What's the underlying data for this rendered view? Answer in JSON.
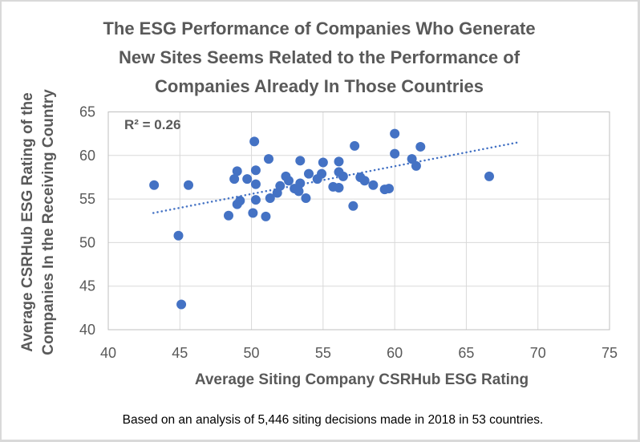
{
  "chart_data": {
    "type": "scatter",
    "title": [
      "The ESG Performance of Companies Who Generate",
      "New Sites Seems Related to the Performance of",
      "Companies Already In Those Countries"
    ],
    "xlabel": "Average Siting Company CSRHub ESG Rating",
    "ylabel": [
      "Average CSRHub  ESG Rating of the",
      "Companies In the Receiving Country"
    ],
    "xlim": [
      40,
      75
    ],
    "ylim": [
      40,
      65
    ],
    "xticks": [
      40,
      45,
      50,
      55,
      60,
      65,
      70,
      75
    ],
    "yticks": [
      40,
      45,
      50,
      55,
      60,
      65
    ],
    "grid": true,
    "marker_color": "#4472c4",
    "annotation": "R² = 0.26",
    "trendline": {
      "type": "linear",
      "style": "dotted",
      "x_start": 43.15,
      "y_start": 53.4,
      "x_end": 68.6,
      "y_end": 61.5,
      "r_squared": 0.26
    },
    "footnote": "Based on an analysis of 5,446 siting decisions made in 2018 in 53 countries.",
    "points": [
      {
        "x": 43.2,
        "y": 56.6
      },
      {
        "x": 45.6,
        "y": 56.6
      },
      {
        "x": 44.9,
        "y": 50.8
      },
      {
        "x": 45.1,
        "y": 42.9
      },
      {
        "x": 48.4,
        "y": 53.1
      },
      {
        "x": 48.8,
        "y": 57.3
      },
      {
        "x": 49.0,
        "y": 58.2
      },
      {
        "x": 49.7,
        "y": 57.3
      },
      {
        "x": 49.2,
        "y": 54.8
      },
      {
        "x": 49.0,
        "y": 54.4
      },
      {
        "x": 50.2,
        "y": 61.6
      },
      {
        "x": 50.3,
        "y": 58.3
      },
      {
        "x": 50.3,
        "y": 56.7
      },
      {
        "x": 50.3,
        "y": 54.9
      },
      {
        "x": 50.1,
        "y": 53.4
      },
      {
        "x": 51.0,
        "y": 53.0
      },
      {
        "x": 51.2,
        "y": 59.6
      },
      {
        "x": 51.3,
        "y": 55.1
      },
      {
        "x": 51.8,
        "y": 55.7
      },
      {
        "x": 52.0,
        "y": 56.5
      },
      {
        "x": 52.4,
        "y": 57.6
      },
      {
        "x": 52.6,
        "y": 57.1
      },
      {
        "x": 53.0,
        "y": 56.2
      },
      {
        "x": 53.3,
        "y": 55.9
      },
      {
        "x": 53.4,
        "y": 56.8
      },
      {
        "x": 53.4,
        "y": 59.4
      },
      {
        "x": 53.8,
        "y": 55.1
      },
      {
        "x": 54.0,
        "y": 57.9
      },
      {
        "x": 54.6,
        "y": 57.3
      },
      {
        "x": 55.0,
        "y": 59.2
      },
      {
        "x": 54.9,
        "y": 57.9
      },
      {
        "x": 55.7,
        "y": 56.4
      },
      {
        "x": 56.1,
        "y": 59.3
      },
      {
        "x": 56.1,
        "y": 58.1
      },
      {
        "x": 56.1,
        "y": 56.3
      },
      {
        "x": 56.4,
        "y": 57.6
      },
      {
        "x": 57.1,
        "y": 54.2
      },
      {
        "x": 57.2,
        "y": 61.1
      },
      {
        "x": 57.6,
        "y": 57.5
      },
      {
        "x": 57.9,
        "y": 57.1
      },
      {
        "x": 58.5,
        "y": 56.6
      },
      {
        "x": 59.3,
        "y": 56.1
      },
      {
        "x": 59.6,
        "y": 56.2
      },
      {
        "x": 60.0,
        "y": 62.5
      },
      {
        "x": 60.0,
        "y": 60.2
      },
      {
        "x": 61.2,
        "y": 59.6
      },
      {
        "x": 61.5,
        "y": 58.8
      },
      {
        "x": 61.8,
        "y": 61.0
      },
      {
        "x": 66.6,
        "y": 57.6
      }
    ]
  }
}
